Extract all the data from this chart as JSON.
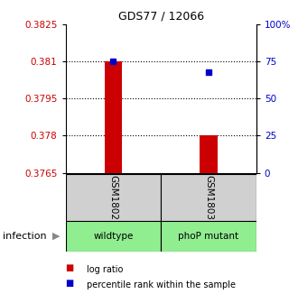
{
  "title": "GDS77 / 12066",
  "samples": [
    "GSM1802",
    "GSM1803"
  ],
  "groups": [
    "wildtype",
    "phoP mutant"
  ],
  "bar_bottom": 0.3765,
  "bar_tops": [
    0.381,
    0.378
  ],
  "percentile_ranks_pct": [
    75,
    68
  ],
  "ylim": [
    0.3765,
    0.3825
  ],
  "yticks_left": [
    0.3765,
    0.378,
    0.3795,
    0.381,
    0.3825
  ],
  "yticks_right_labels": [
    "0",
    "25",
    "50",
    "75",
    "100%"
  ],
  "yticks_right_vals": [
    0,
    25,
    50,
    75,
    100
  ],
  "dotted_lines_pct": [
    25,
    50,
    75
  ],
  "bar_color": "#cc0000",
  "dot_color": "#0000cc",
  "label_color_left": "#cc0000",
  "label_color_right": "#0000cc",
  "gray_color": "#d0d0d0",
  "green_color": "#90ee90",
  "infection_label": "infection",
  "legend_items": [
    "log ratio",
    "percentile rank within the sample"
  ]
}
